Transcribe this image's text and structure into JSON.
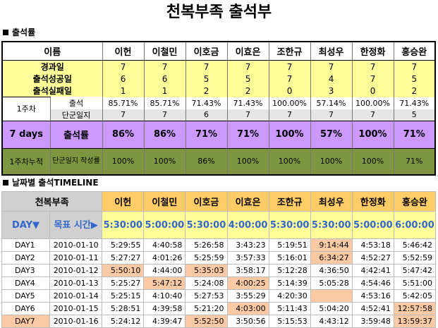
{
  "title": "천복부족 출석부",
  "section1_title": "출석률",
  "section2_title": "날짜별 출석TIMELINE",
  "summary": {
    "header_label": "이름",
    "names": [
      "이헌",
      "이철민",
      "이호금",
      "이효은",
      "조한규",
      "최성우",
      "한정화",
      "홍승완"
    ],
    "rows": [
      {
        "label": "경과일",
        "values": [
          "7",
          "7",
          "7",
          "7",
          "7",
          "7",
          "7",
          "7"
        ]
      },
      {
        "label": "출석성공일",
        "values": [
          "6",
          "6",
          "5",
          "5",
          "7",
          "4",
          "7",
          "5"
        ]
      },
      {
        "label": "출석실패일",
        "values": [
          "1",
          "1",
          "2",
          "2",
          "0",
          "3",
          "0",
          "2"
        ]
      }
    ],
    "week1": {
      "label": "1주차",
      "attend_label": "출석",
      "attend": [
        "85.71%",
        "85.71%",
        "71.43%",
        "71.43%",
        "100.00%",
        "57.14%",
        "100.00%",
        "71.43%"
      ],
      "diary_label": "단군일지",
      "diary": [
        "7",
        "7",
        "6",
        "7",
        "7",
        "7",
        "7",
        "5"
      ]
    },
    "days7": {
      "label": "7 days",
      "rate_label": "출석률",
      "values": [
        "86%",
        "86%",
        "71%",
        "71%",
        "100%",
        "57%",
        "100%",
        "71%"
      ]
    },
    "cumulative": {
      "label": "1주차누적",
      "sublabel": "단군일지 작성률",
      "values": [
        "100%",
        "100%",
        "86%",
        "100%",
        "100%",
        "100%",
        "100%",
        "71%"
      ]
    }
  },
  "timeline": {
    "header_label": "천복부족",
    "day_label": "DAY▼",
    "goal_label": "목표 시간▶",
    "goals": [
      "5:30:00",
      "5:00:00",
      "5:30:00",
      "4:00:00",
      "5:30:00",
      "5:30:00",
      "5:00:00",
      "6:00:00"
    ],
    "rows": [
      {
        "day": "DAY1",
        "date": "2010-01-10",
        "times": [
          "5:29:55",
          "4:40:58",
          "5:26:58",
          "3:43:23",
          "5:19:51",
          "9:14:44",
          "4:53:18",
          "5:46:42"
        ],
        "late": [
          false,
          false,
          false,
          false,
          false,
          true,
          false,
          false
        ]
      },
      {
        "day": "DAY2",
        "date": "2010-01-11",
        "times": [
          "5:27:27",
          "4:01:26",
          "5:25:59",
          "3:57:33",
          "5:16:01",
          "6:34:27",
          "4:52:27",
          "5:52:59"
        ],
        "late": [
          false,
          false,
          false,
          false,
          false,
          true,
          false,
          false
        ]
      },
      {
        "day": "DAY3",
        "date": "2010-01-12",
        "times": [
          "5:50:10",
          "4:44:00",
          "5:35:03",
          "3:58:17",
          "5:12:28",
          "4:36:50",
          "4:42:41",
          "5:47:42"
        ],
        "late": [
          true,
          false,
          true,
          false,
          false,
          false,
          false,
          false
        ]
      },
      {
        "day": "DAY4",
        "date": "2010-01-13",
        "times": [
          "5:25:27",
          "5:47:12",
          "5:24:08",
          "4:00:25",
          "5:14:39",
          "5:05:28",
          "4:54:46",
          "5:51:00"
        ],
        "late": [
          false,
          true,
          false,
          true,
          false,
          false,
          false,
          false
        ]
      },
      {
        "day": "DAY5",
        "date": "2010-01-14",
        "times": [
          "5:25:15",
          "4:10:40",
          "5:27:53",
          "3:55:29",
          "4:20:30",
          "",
          "4:53:16",
          "5:42:05"
        ],
        "late": [
          false,
          false,
          false,
          false,
          false,
          true,
          false,
          false
        ]
      },
      {
        "day": "DAY6",
        "date": "2010-01-15",
        "times": [
          "5:28:51",
          "4:39:58",
          "5:21:20",
          "4:03:00",
          "5:11:43",
          "5:04:20",
          "4:52:41",
          "12:57:58"
        ],
        "late": [
          false,
          false,
          false,
          true,
          false,
          false,
          false,
          true
        ]
      },
      {
        "day": "DAY7",
        "date": "2010-01-16",
        "times": [
          "5:24:12",
          "4:39:47",
          "5:52:50",
          "3:50:56",
          "5:15:53",
          "4:43:12",
          "3:59:48",
          "13:59:37"
        ],
        "late": [
          false,
          false,
          true,
          false,
          false,
          false,
          false,
          true
        ]
      }
    ]
  }
}
